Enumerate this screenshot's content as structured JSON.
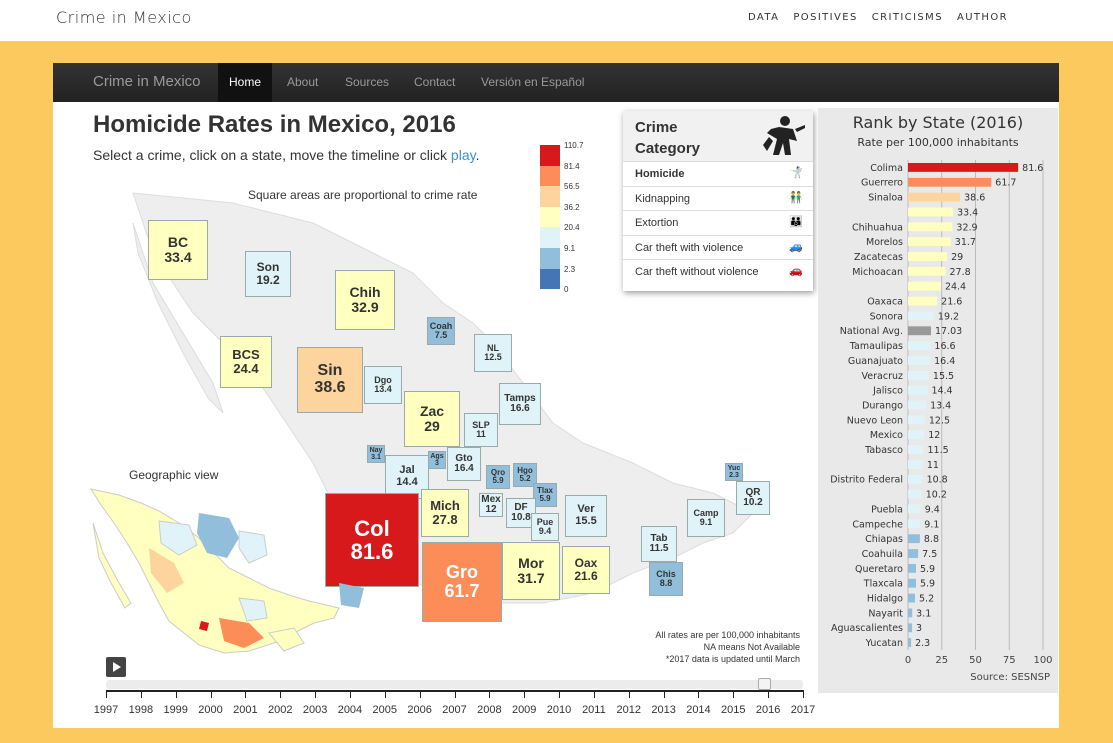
{
  "site": {
    "title": "Crime in Mexico",
    "nav": [
      "DATA",
      "POSITIVES",
      "CRITICISMS",
      "AUTHOR"
    ]
  },
  "app": {
    "brand": "Crime in Mexico",
    "nav": [
      "Home",
      "About",
      "Sources",
      "Contact",
      "Versión en Español"
    ],
    "active_nav": "Home",
    "title": "Homicide Rates in Mexico, 2016",
    "subtitle_prefix": "Select a crime, click on a state, move the timeline or click ",
    "subtitle_link": "play",
    "subtitle_suffix": ".",
    "square_note": "Square areas are proportional to crime rate",
    "geo_label": "Geographic view",
    "notes": [
      "All rates are per 100,000 inhabitants",
      "NA means Not Available",
      "*2017 data is updated until March"
    ]
  },
  "legend": {
    "labels": [
      "110.7",
      "81.4",
      "56.5",
      "36.2",
      "20.4",
      "9.1",
      "2.3",
      "0"
    ],
    "colors": [
      "#d7191c",
      "#fc8d59",
      "#fdd49e",
      "#ffffbf",
      "#e0f3f8",
      "#91bfdb",
      "#4575b4"
    ]
  },
  "states": [
    {
      "abbr": "BC",
      "value": "33.4",
      "color": "#ffffbf"
    },
    {
      "abbr": "Son",
      "value": "19.2",
      "color": "#e0f3f8"
    },
    {
      "abbr": "Chih",
      "value": "32.9",
      "color": "#ffffbf"
    },
    {
      "abbr": "BCS",
      "value": "24.4",
      "color": "#ffffbf"
    },
    {
      "abbr": "Coah",
      "value": "7.5",
      "color": "#91bfdb"
    },
    {
      "abbr": "NL",
      "value": "12.5",
      "color": "#e0f3f8"
    },
    {
      "abbr": "Sin",
      "value": "38.6",
      "color": "#fdd49e"
    },
    {
      "abbr": "Dgo",
      "value": "13.4",
      "color": "#e0f3f8"
    },
    {
      "abbr": "Tamps",
      "value": "16.6",
      "color": "#e0f3f8"
    },
    {
      "abbr": "Zac",
      "value": "29",
      "color": "#ffffbf"
    },
    {
      "abbr": "SLP",
      "value": "11",
      "color": "#e0f3f8"
    },
    {
      "abbr": "Nay",
      "value": "3.1",
      "color": "#91bfdb"
    },
    {
      "abbr": "Ags",
      "value": "3",
      "color": "#91bfdb"
    },
    {
      "abbr": "Gto",
      "value": "16.4",
      "color": "#e0f3f8"
    },
    {
      "abbr": "Qro",
      "value": "5.9",
      "color": "#91bfdb"
    },
    {
      "abbr": "Hgo",
      "value": "5.2",
      "color": "#91bfdb"
    },
    {
      "abbr": "Jal",
      "value": "14.4",
      "color": "#e0f3f8"
    },
    {
      "abbr": "Yuc",
      "value": "2.3",
      "color": "#91bfdb"
    },
    {
      "abbr": "Tlax",
      "value": "5.9",
      "color": "#91bfdb"
    },
    {
      "abbr": "QR",
      "value": "10.2",
      "color": "#e0f3f8"
    },
    {
      "abbr": "Mich",
      "value": "27.8",
      "color": "#ffffbf"
    },
    {
      "abbr": "Mex",
      "value": "12",
      "color": "#e0f3f8"
    },
    {
      "abbr": "DF",
      "value": "10.8",
      "color": "#e0f3f8"
    },
    {
      "abbr": "Ver",
      "value": "15.5",
      "color": "#e0f3f8"
    },
    {
      "abbr": "Camp",
      "value": "9.1",
      "color": "#e0f3f8"
    },
    {
      "abbr": "Col",
      "value": "81.6",
      "color": "#d7191c"
    },
    {
      "abbr": "Pue",
      "value": "9.4",
      "color": "#e0f3f8"
    },
    {
      "abbr": "Tab",
      "value": "11.5",
      "color": "#e0f3f8"
    },
    {
      "abbr": "Gro",
      "value": "61.7",
      "color": "#fc8d59"
    },
    {
      "abbr": "Mor",
      "value": "31.7",
      "color": "#ffffbf"
    },
    {
      "abbr": "Oax",
      "value": "21.6",
      "color": "#ffffbf"
    },
    {
      "abbr": "Chis",
      "value": "8.8",
      "color": "#91bfdb"
    }
  ],
  "crime_category": {
    "title_line1": "Crime",
    "title_line2": "Category",
    "items": [
      {
        "label": "Homicide",
        "selected": true,
        "icon": "homicide-icon"
      },
      {
        "label": "Kidnapping",
        "selected": false,
        "icon": "kidnapping-icon"
      },
      {
        "label": "Extortion",
        "selected": false,
        "icon": "extortion-icon"
      },
      {
        "label": "Car theft with violence",
        "selected": false,
        "icon": "car-theft-violence-icon"
      },
      {
        "label": "Car theft without violence",
        "selected": false,
        "icon": "car-icon"
      }
    ]
  },
  "timeline": {
    "years": [
      "1997",
      "1998",
      "1999",
      "2000",
      "2001",
      "2002",
      "2003",
      "2004",
      "2005",
      "2006",
      "2007",
      "2008",
      "2009",
      "2010",
      "2011",
      "2012",
      "2013",
      "2014",
      "2015",
      "2016",
      "2017"
    ],
    "selected": "2016"
  },
  "chart_data": {
    "type": "bar",
    "title": "Rank by State (2016)",
    "subtitle": "Rate per 100,000 inhabitants",
    "source": "Source: SESNSP",
    "xlim": [
      0,
      100
    ],
    "xticks": [
      "0",
      "25",
      "50",
      "75",
      "100"
    ],
    "grid": true,
    "categories": [
      "Colima",
      "Guerrero",
      "Sinaloa",
      "",
      "Chihuahua",
      "Morelos",
      "Zacatecas",
      "Michoacan",
      "",
      "Oaxaca",
      "Sonora",
      "National Avg.",
      "Tamaulipas",
      "Guanajuato",
      "Veracruz",
      "Jalisco",
      "Durango",
      "Nuevo Leon",
      "Mexico",
      "Tabasco",
      "",
      "Distrito Federal",
      "",
      "Puebla",
      "Campeche",
      "Chiapas",
      "Coahuila",
      "Queretaro",
      "Tlaxcala",
      "Hidalgo",
      "Nayarit",
      "Aguascalientes",
      "Yucatan"
    ],
    "values": [
      81.6,
      61.7,
      38.6,
      33.4,
      32.9,
      31.7,
      29,
      27.8,
      24.4,
      21.6,
      19.2,
      17.03,
      16.6,
      16.4,
      15.5,
      14.4,
      13.4,
      12.5,
      12,
      11.5,
      11,
      10.8,
      10.2,
      9.4,
      9.1,
      8.8,
      7.5,
      5.9,
      5.9,
      5.2,
      3.1,
      3,
      2.3
    ],
    "colors": [
      "#d7191c",
      "#fc8d59",
      "#fdd49e",
      "#ffffbf",
      "#ffffbf",
      "#ffffbf",
      "#ffffbf",
      "#ffffbf",
      "#ffffbf",
      "#ffffbf",
      "#e0f3f8",
      "#999999",
      "#e0f3f8",
      "#e0f3f8",
      "#e0f3f8",
      "#e0f3f8",
      "#e0f3f8",
      "#e0f3f8",
      "#e0f3f8",
      "#e0f3f8",
      "#e0f3f8",
      "#e0f3f8",
      "#e0f3f8",
      "#e0f3f8",
      "#e0f3f8",
      "#91bfdb",
      "#91bfdb",
      "#91bfdb",
      "#91bfdb",
      "#91bfdb",
      "#91bfdb",
      "#91bfdb",
      "#91bfdb"
    ]
  }
}
